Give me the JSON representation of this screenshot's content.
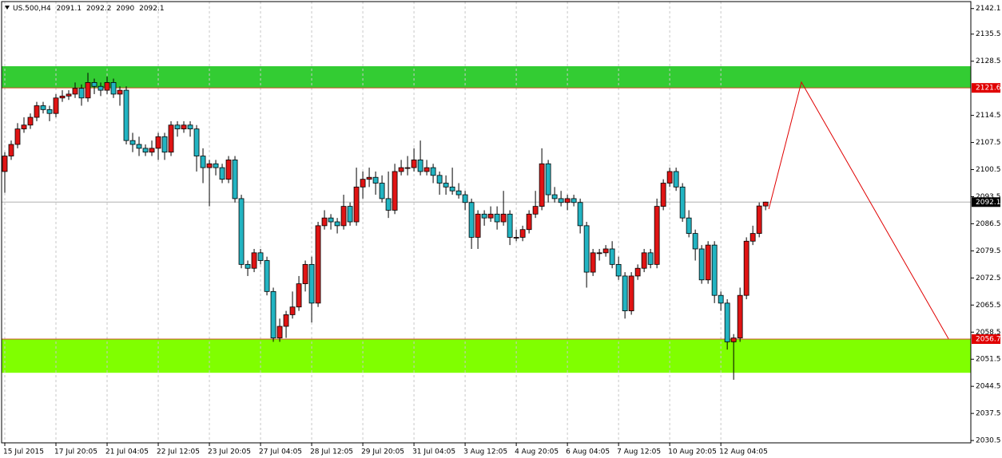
{
  "chart_data": {
    "type": "candlestick",
    "title": "US.500,H4",
    "up_color": "#e01414",
    "down_color": "#22b4c2",
    "xlim": [
      -0.5,
      151.1
    ],
    "ylim": [
      2029.9,
      2143.9
    ],
    "grid": true,
    "yticks": [
      2142.1,
      2135.5,
      2128.5,
      2114.5,
      2107.5,
      2100.5,
      2093.5,
      2086.5,
      2079.5,
      2072.5,
      2065.5,
      2058.5,
      2051.5,
      2044.5,
      2037.5,
      2030.5
    ],
    "x_ticks": [
      {
        "value": 0,
        "label": "15 Jul 2015"
      },
      {
        "value": 8,
        "label": "17 Jul 20:05"
      },
      {
        "value": 16,
        "label": "21 Jul 04:05"
      },
      {
        "value": 24,
        "label": "22 Jul 12:05"
      },
      {
        "value": 32,
        "label": "23 Jul 20:05"
      },
      {
        "value": 40,
        "label": "27 Jul 04:05"
      },
      {
        "value": 48,
        "label": "28 Jul 12:05"
      },
      {
        "value": 56,
        "label": "29 Jul 20:05"
      },
      {
        "value": 64,
        "label": "31 Jul 04:05"
      },
      {
        "value": 72,
        "label": "3 Aug 12:05"
      },
      {
        "value": 80,
        "label": "4 Aug 20:05"
      },
      {
        "value": 88,
        "label": "6 Aug 04:05"
      },
      {
        "value": 96,
        "label": "7 Aug 12:05"
      },
      {
        "value": 104,
        "label": "10 Aug 20:05"
      },
      {
        "value": 112,
        "label": "12 Aug 04:05"
      }
    ],
    "open": [
      2100,
      2104,
      2107,
      2111,
      2112,
      2114,
      2117,
      2116,
      2115,
      2119,
      2119.5,
      2120,
      2121.5,
      2119,
      2123,
      2122,
      2121,
      2123,
      2120,
      2121,
      2108,
      2107,
      2106,
      2105,
      2106,
      2109,
      2105,
      2112,
      2111,
      2112,
      2111,
      2104,
      2101,
      2102,
      2101,
      2098,
      2103,
      2093,
      2076,
      2075,
      2079,
      2077,
      2069,
      2057,
      2060,
      2063,
      2065,
      2071,
      2076,
      2066,
      2086,
      2088,
      2087,
      2086,
      2091,
      2087,
      2096,
      2098,
      2098.5,
      2097,
      2093,
      2090,
      2100,
      2101,
      2101,
      2103,
      2100,
      2101,
      2099,
      2097,
      2096,
      2095,
      2094,
      2092,
      2083,
      2089,
      2088,
      2089,
      2087,
      2089,
      2083,
      2083,
      2085,
      2089,
      2091,
      2102,
      2094,
      2093,
      2092,
      2093,
      2092,
      2086,
      2074,
      2079,
      2079,
      2080,
      2076,
      2073,
      2064,
      2073,
      2075,
      2079,
      2076,
      2091,
      2097,
      2100,
      2096,
      2088,
      2084,
      2080,
      2072,
      2081,
      2068,
      2066,
      2056,
      2057,
      2068,
      2082,
      2084,
      2091.1
    ],
    "high": [
      2105,
      2108,
      2112.5,
      2114,
      2115,
      2118,
      2118,
      2117,
      2120,
      2121,
      2121,
      2123,
      2122.5,
      2125.5,
      2124,
      2123,
      2124.5,
      2124,
      2122,
      2122,
      2110,
      2109,
      2107,
      2108,
      2110,
      2110,
      2113,
      2113,
      2113,
      2113,
      2112,
      2106,
      2103,
      2103,
      2102,
      2104,
      2104,
      2094,
      2077,
      2080,
      2080,
      2078,
      2070,
      2062,
      2064,
      2069,
      2073,
      2077,
      2078,
      2087,
      2090,
      2089,
      2088,
      2094,
      2092,
      2101,
      2100,
      2101,
      2100,
      2099,
      2100,
      2102,
      2103,
      2104,
      2106,
      2108,
      2103,
      2102,
      2100,
      2099,
      2101,
      2097,
      2095,
      2093,
      2090,
      2090,
      2091,
      2091,
      2095,
      2090,
      2085,
      2086,
      2090,
      2095,
      2106,
      2103,
      2096,
      2095,
      2094,
      2094,
      2093,
      2087,
      2080,
      2080,
      2081,
      2082,
      2078,
      2074,
      2074,
      2076,
      2080,
      2080,
      2093,
      2098,
      2101,
      2101,
      2097,
      2090,
      2085,
      2081,
      2082,
      2082,
      2069,
      2067,
      2058,
      2070,
      2083,
      2086,
      2092,
      2092.2
    ],
    "low": [
      2094.5,
      2103,
      2106,
      2110,
      2111,
      2113,
      2115,
      2113,
      2114,
      2118,
      2118.5,
      2119,
      2117,
      2118,
      2120,
      2119.5,
      2120,
      2119,
      2117,
      2107,
      2105,
      2104,
      2104,
      2104,
      2103,
      2103,
      2104,
      2109,
      2110,
      2109,
      2100,
      2097,
      2091,
      2099,
      2097,
      2097,
      2092,
      2075,
      2073,
      2074,
      2076,
      2068,
      2056,
      2056,
      2057,
      2062,
      2064,
      2069,
      2061,
      2065,
      2085,
      2085,
      2084,
      2085,
      2086,
      2086,
      2093,
      2096,
      2094,
      2092,
      2088,
      2089,
      2099,
      2099,
      2100,
      2099,
      2099,
      2097,
      2094,
      2094,
      2094,
      2093,
      2090,
      2080,
      2080,
      2086,
      2087,
      2085,
      2086,
      2081,
      2082,
      2082,
      2084,
      2088,
      2090,
      2092,
      2092,
      2091,
      2090,
      2091,
      2084,
      2070,
      2073,
      2077,
      2078,
      2075,
      2072,
      2062,
      2063,
      2072,
      2074,
      2075,
      2075,
      2090,
      2096,
      2095,
      2087,
      2083,
      2077,
      2071,
      2071,
      2066,
      2064,
      2054,
      2046.2,
      2056,
      2067,
      2081,
      2083,
      2090.0
    ],
    "close": [
      2104,
      2107,
      2111,
      2112,
      2114,
      2117,
      2116,
      2115,
      2119,
      2119.5,
      2120,
      2121.5,
      2119,
      2123,
      2122,
      2121,
      2123,
      2120,
      2121,
      2108,
      2107,
      2106,
      2105,
      2106,
      2109,
      2105,
      2112,
      2111,
      2112,
      2111,
      2104,
      2101,
      2102,
      2101,
      2098,
      2103,
      2093,
      2076,
      2075,
      2079,
      2077,
      2069,
      2057,
      2060,
      2063,
      2065,
      2071,
      2076,
      2066,
      2086,
      2088,
      2087,
      2086,
      2091,
      2087,
      2096,
      2098,
      2098.5,
      2097,
      2093,
      2090,
      2100,
      2101,
      2101,
      2103,
      2100,
      2101,
      2099,
      2097,
      2096,
      2095,
      2094,
      2092,
      2083,
      2089,
      2088,
      2089,
      2087,
      2089,
      2083,
      2083,
      2085,
      2089,
      2091,
      2102,
      2094,
      2093,
      2092,
      2093,
      2092,
      2086,
      2074,
      2079,
      2079,
      2080,
      2076,
      2073,
      2064,
      2073,
      2075,
      2079,
      2076,
      2091,
      2097,
      2100,
      2096,
      2088,
      2084,
      2080,
      2072,
      2081,
      2068,
      2066,
      2056,
      2057,
      2068,
      2082,
      2084,
      2091.1,
      2092.1
    ],
    "zones": [
      {
        "y": [
          2121.6,
          2127.2
        ],
        "color": "#33cc33"
      },
      {
        "y": [
          2048.0,
          2056.7
        ],
        "color": "#80ff00"
      }
    ],
    "levels": [
      2121.6,
      2056.7
    ],
    "level_color": "#c8501e",
    "projection": {
      "x": [
        119.5,
        124.6,
        147.6
      ],
      "y": [
        2090.3,
        2123.1,
        2056.8
      ],
      "color": "#e00000"
    }
  }
}
